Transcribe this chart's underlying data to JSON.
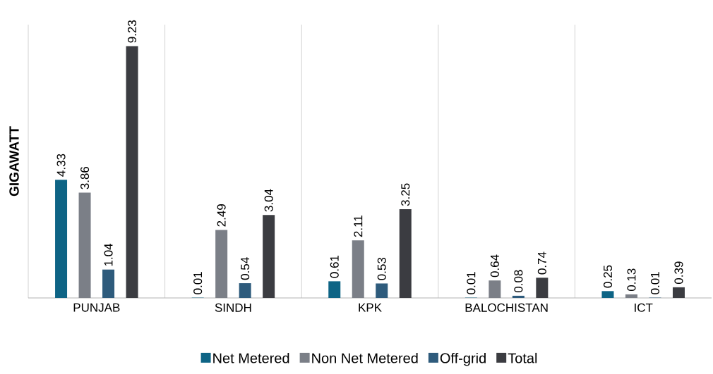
{
  "chart_data": {
    "type": "bar",
    "ylabel": "GIGAWATT",
    "categories": [
      "PUNJAB",
      "SINDH",
      "KPK",
      "BALOCHISTAN",
      "ICT"
    ],
    "series": [
      {
        "name": "Net Metered",
        "color": "#0e6485",
        "values": [
          4.33,
          0.01,
          0.61,
          0.01,
          0.25
        ]
      },
      {
        "name": "Non Net Metered",
        "color": "#7b7f87",
        "values": [
          3.86,
          2.49,
          2.11,
          0.64,
          0.13
        ]
      },
      {
        "name": "Off-grid",
        "color": "#2e5b7c",
        "values": [
          1.04,
          0.54,
          0.53,
          0.08,
          0.01
        ]
      },
      {
        "name": "Total",
        "color": "#3b3c41",
        "values": [
          9.23,
          3.04,
          3.25,
          0.74,
          0.39
        ]
      }
    ],
    "data_labels": true,
    "grid": "x",
    "legend": "bottom"
  }
}
